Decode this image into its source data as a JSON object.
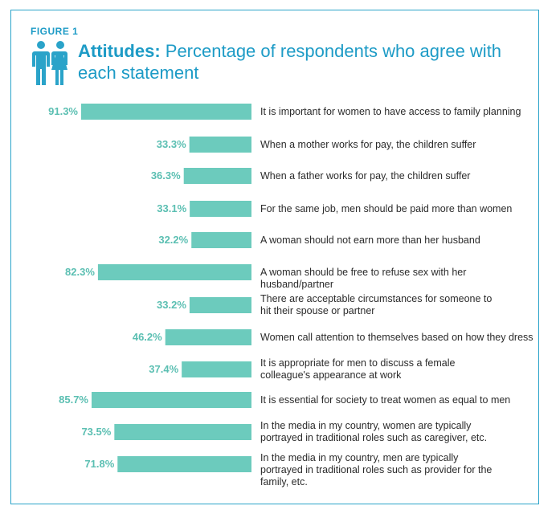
{
  "figure_label": "FIGURE 1",
  "title_bold": "Attitudes:",
  "title_rest": " Percentage of respondents who agree with each statement",
  "icon": "man-woman-icon",
  "colors": {
    "bar": "#6ccbbd",
    "value": "#5bbfb2",
    "title": "#1d9bc6",
    "frame": "#2aa3c9",
    "text": "#2b2b2b"
  },
  "chart_data": {
    "type": "bar",
    "orientation": "horizontal",
    "title": "Attitudes: Percentage of respondents who agree with each statement",
    "xlim": [
      0,
      100
    ],
    "unit": "%",
    "categories": [
      "It is important for women to have access to family planning",
      "When a mother works for pay, the children suffer",
      "When a father works for pay, the children suffer",
      "For the same job, men should be paid more than women",
      "A woman should not earn more than her husband",
      "A woman should be free to refuse sex with her husband/partner",
      "There are acceptable circumstances for someone to hit their spouse or partner",
      "Women call attention to themselves based on how they dress",
      "It is appropriate for men to discuss a female colleague's appearance at work",
      "It is essential for society to treat women as equal to men",
      "In the media in my country, women are typically portrayed in traditional roles such as caregiver, etc.",
      "In the media in my country, men are typically portrayed in traditional roles such as provider for the family, etc."
    ],
    "values": [
      91.3,
      33.3,
      36.3,
      33.1,
      32.2,
      82.3,
      33.2,
      46.2,
      37.4,
      85.7,
      73.5,
      71.8
    ],
    "value_labels": [
      "91.3%",
      "33.3%",
      "36.3%",
      "33.1%",
      "32.2%",
      "82.3%",
      "33.2%",
      "46.2%",
      "37.4%",
      "85.7%",
      "73.5%",
      "71.8%"
    ]
  }
}
